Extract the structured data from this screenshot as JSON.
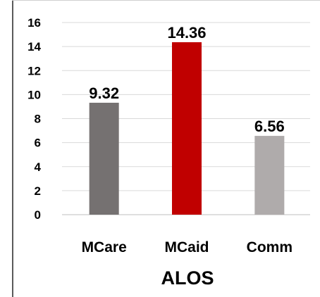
{
  "chart_data": {
    "type": "bar",
    "categories": [
      "MCare",
      "MCaid",
      "Comm"
    ],
    "values": [
      9.32,
      14.36,
      6.56
    ],
    "data_labels": [
      "9.32",
      "14.36",
      "6.56"
    ],
    "colors": [
      "#757171",
      "#c00000",
      "#afabab"
    ],
    "title": "",
    "xlabel": "ALOS",
    "ylabel": "",
    "ylim": [
      0,
      16
    ],
    "yticks": [
      "0",
      "2",
      "4",
      "6",
      "8",
      "10",
      "12",
      "14",
      "16"
    ],
    "grid": true,
    "grid_color": "#d9d9d9",
    "legend": "none"
  }
}
